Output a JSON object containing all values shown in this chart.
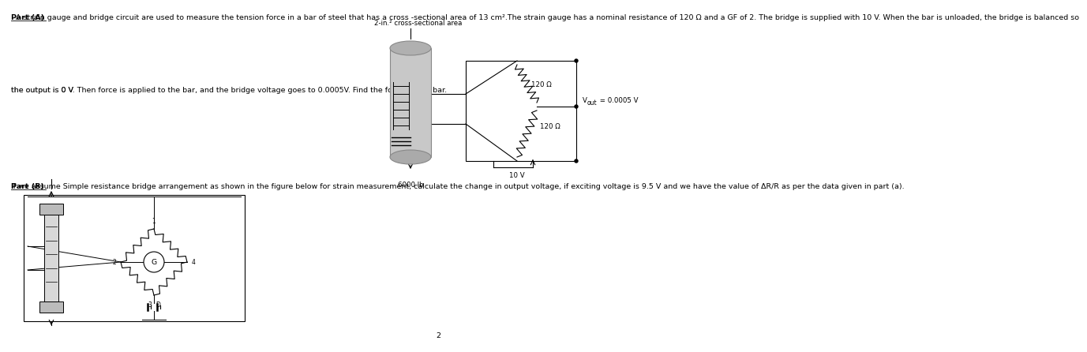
{
  "bg_color": "#ffffff",
  "line1_full": "Part (A)  A strain gauge and bridge circuit are used to measure the tension force in a bar of steel that has a cross -sectional area of 13 cm².The strain gauge has a nominal resistance of 120 Ω and a GF of 2. The bridge is supplied with 10 V. When the bar is unloaded, the bridge is balanced so",
  "line2_full": "the output is 0 V. Then force is applied to the bar, and the bridge voltage goes to 0.0005V. Find the force on the bar.",
  "part_b_full": "Part (B) If we assume Simple resistance bridge arrangement as shown in the figure below for strain measurement, calculate the change in output voltage, if exciting voltage is 9.5 V and we have the value of ΔR/R as per the data given in part (a).",
  "diagram_label_top": "2-in.² cross-sectional area",
  "diagram_r1": "120 Ω",
  "diagram_r2": "120 Ω",
  "diagram_vout": "V",
  "diagram_vout_sub": "out",
  "diagram_vout_val": " = 0.0005 V",
  "diagram_vsup": "10 V",
  "diagram_force": "6000 lb",
  "page_num": "2",
  "fs_tiny": 5.5,
  "fs_small": 6.2,
  "fs_body": 6.8
}
